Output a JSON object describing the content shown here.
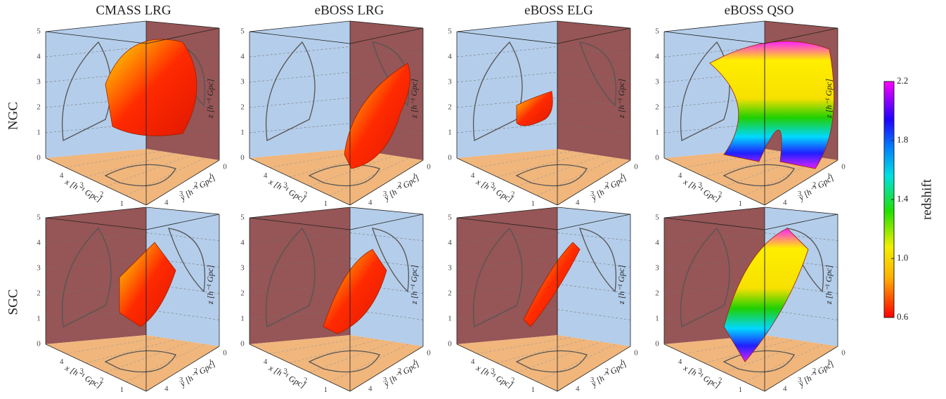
{
  "columns": [
    "CMASS LRG",
    "eBOSS LRG",
    "eBOSS ELG",
    "eBOSS QSO"
  ],
  "rows": [
    "NGC",
    "SGC"
  ],
  "axes": {
    "x_label": "x [h⁻¹ Gpc]",
    "y_label": "y [h⁻¹ Gpc]",
    "z_label": "z [h⁻¹ Gpc]",
    "xticks": [
      0,
      1,
      2,
      3,
      4
    ],
    "yticks": [
      0,
      1,
      2,
      3,
      4
    ],
    "zticks": [
      0,
      1,
      2,
      3,
      4,
      5
    ]
  },
  "colorbar": {
    "label": "redshift",
    "lim": [
      0.6,
      2.2
    ],
    "ticks": [
      0.6,
      {
        "value": 1,
        "label": "1.0"
      },
      1.4,
      1.8,
      2.2
    ]
  }
}
